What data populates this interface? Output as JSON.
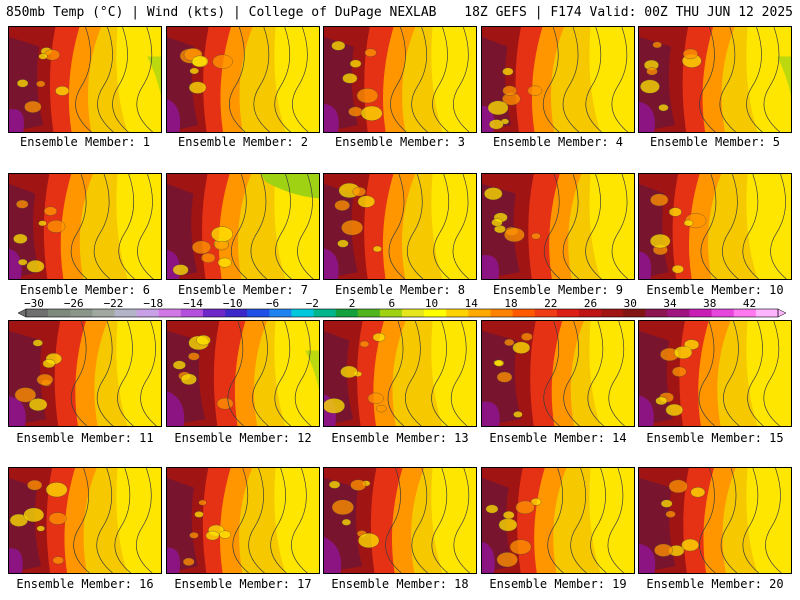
{
  "header": {
    "left": "850mb Temp (°C) | Wind (kts) | College of DuPage NEXLAB",
    "right": "18Z GEFS | F174 Valid: 00Z THU JUN 12 2025"
  },
  "members": [
    "Ensemble Member: 1",
    "Ensemble Member: 2",
    "Ensemble Member: 3",
    "Ensemble Member: 4",
    "Ensemble Member: 5",
    "Ensemble Member: 6",
    "Ensemble Member: 7",
    "Ensemble Member: 8",
    "Ensemble Member: 9",
    "Ensemble Member: 10",
    "Ensemble Member: 11",
    "Ensemble Member: 12",
    "Ensemble Member: 13",
    "Ensemble Member: 14",
    "Ensemble Member: 15",
    "Ensemble Member: 16",
    "Ensemble Member: 17",
    "Ensemble Member: 18",
    "Ensemble Member: 19",
    "Ensemble Member: 20"
  ],
  "colorbar": {
    "ticks": [
      "−30",
      "−26",
      "−22",
      "−18",
      "−14",
      "−10",
      "−6",
      "−2",
      "2",
      "6",
      "10",
      "14",
      "18",
      "22",
      "26",
      "30",
      "34",
      "38",
      "42"
    ],
    "colors": [
      "#6f6f6f",
      "#7d8a7d",
      "#8a968a",
      "#a0a8a0",
      "#b4b4c8",
      "#c8a0e6",
      "#d278e6",
      "#b450dc",
      "#6e28c8",
      "#3c28c8",
      "#1e50e6",
      "#1e82f0",
      "#00c8dc",
      "#00b48c",
      "#14a03c",
      "#50b41e",
      "#a0d214",
      "#e6e61e",
      "#ffff00",
      "#ffd200",
      "#ffaa00",
      "#ff8200",
      "#ff5a00",
      "#f03c14",
      "#dc1e14",
      "#be1414",
      "#a01414",
      "#821414",
      "#8c1450",
      "#a01482",
      "#c81eb4",
      "#e646dc",
      "#ff78f0",
      "#ffb4ff"
    ]
  },
  "map_colors": {
    "warm_bg": "#f5c800",
    "east": "#ffe600",
    "orange": "#ff9600",
    "red": "#e63214",
    "dark_red": "#a01414",
    "maroon": "#78142d",
    "purple": "#8c1482",
    "green": "#a0d214",
    "contour": "#3c3c3c"
  }
}
